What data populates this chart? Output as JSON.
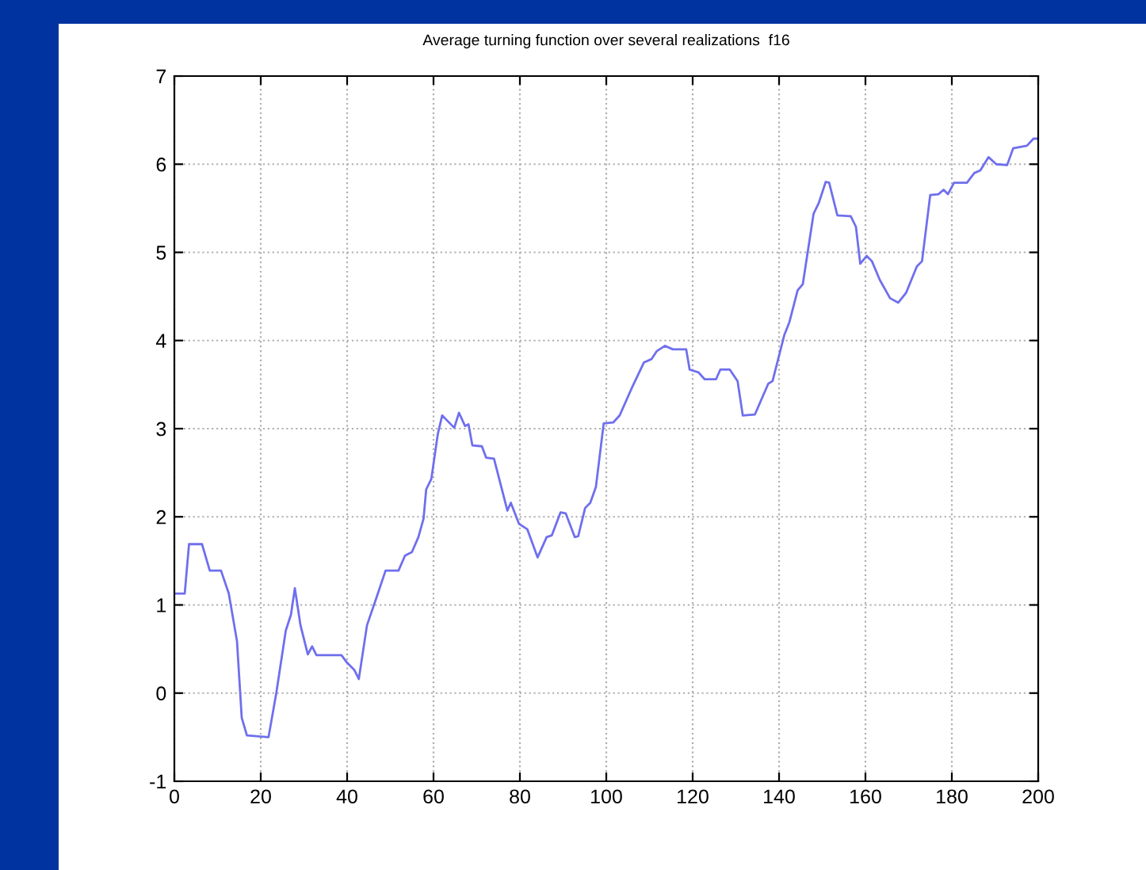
{
  "chart_data": {
    "type": "line",
    "title": "Average turning function over several realizations  f16",
    "xlim": [
      0,
      200
    ],
    "xticks": [
      0,
      20,
      40,
      60,
      80,
      100,
      120,
      140,
      160,
      180,
      200
    ],
    "ylim": [
      -1,
      7
    ],
    "yticks": [
      -1,
      0,
      1,
      2,
      3,
      4,
      5,
      6,
      7
    ],
    "grid": true,
    "line_style": "solid",
    "marker": "none",
    "series": [
      {
        "color": "#6f6fee",
        "x": [
          0,
          0.8,
          2.4,
          3.4,
          6.4,
          8.2,
          10.8,
          12.6,
          14.5,
          15.6,
          16.8,
          21.8,
          23.6,
          25.8,
          27,
          27.9,
          29.2,
          30.9,
          31.9,
          32.9,
          38.7,
          39.9,
          41.7,
          42.7,
          44.6,
          46.7,
          48.9,
          51.9,
          53.4,
          55,
          56.5,
          57.7,
          58.3,
          59.5,
          61,
          62,
          62.6,
          64.8,
          65.9,
          67.3,
          68.1,
          69,
          71.2,
          72.2,
          74,
          77.1,
          77.9,
          79.8,
          81.7,
          84.1,
          86.2,
          87.4,
          89.4,
          90.6,
          92.7,
          93.5,
          95.1,
          96.3,
          97.6,
          99.4,
          101.6,
          103.1,
          105.8,
          108.7,
          110.5,
          111.7,
          113.6,
          115.4,
          118.5,
          119.3,
          121.3,
          122.8,
          125.4,
          126.4,
          128.6,
          130.4,
          131.6,
          134.4,
          137.5,
          138.5,
          141.2,
          142.4,
          144.3,
          145.5,
          148,
          149.2,
          150.8,
          151.6,
          153.5,
          156.6,
          157.8,
          158.8,
          160.3,
          161.5,
          163.3,
          165.7,
          167.6,
          169.4,
          171.9,
          173.1,
          175,
          176.9,
          178.1,
          179.1,
          180.5,
          183.5,
          185.2,
          186.6,
          188.5,
          190.3,
          192.8,
          194.2,
          197.4,
          198.9,
          200
        ],
        "values": [
          1.13,
          1.13,
          1.13,
          1.69,
          1.69,
          1.39,
          1.39,
          1.13,
          0.59,
          -0.28,
          -0.48,
          -0.5,
          0,
          0.71,
          0.89,
          1.19,
          0.77,
          0.44,
          0.53,
          0.43,
          0.43,
          0.35,
          0.26,
          0.16,
          0.77,
          1.07,
          1.39,
          1.39,
          1.56,
          1.6,
          1.77,
          1.98,
          2.31,
          2.43,
          2.94,
          3.15,
          3.12,
          3.01,
          3.18,
          3.03,
          3.05,
          2.81,
          2.8,
          2.67,
          2.66,
          2.07,
          2.16,
          1.92,
          1.86,
          1.54,
          1.77,
          1.79,
          2.05,
          2.04,
          1.77,
          1.78,
          2.1,
          2.16,
          2.34,
          3.06,
          3.07,
          3.15,
          3.45,
          3.75,
          3.79,
          3.88,
          3.94,
          3.9,
          3.9,
          3.67,
          3.64,
          3.56,
          3.56,
          3.67,
          3.67,
          3.54,
          3.15,
          3.16,
          3.51,
          3.54,
          4.06,
          4.21,
          4.57,
          4.64,
          5.44,
          5.56,
          5.8,
          5.79,
          5.42,
          5.41,
          5.29,
          4.87,
          4.96,
          4.9,
          4.69,
          4.48,
          4.43,
          4.54,
          4.84,
          4.9,
          5.65,
          5.66,
          5.71,
          5.66,
          5.79,
          5.79,
          5.9,
          5.93,
          6.08,
          6.0,
          5.99,
          6.18,
          6.21,
          6.29,
          6.29
        ]
      }
    ]
  }
}
